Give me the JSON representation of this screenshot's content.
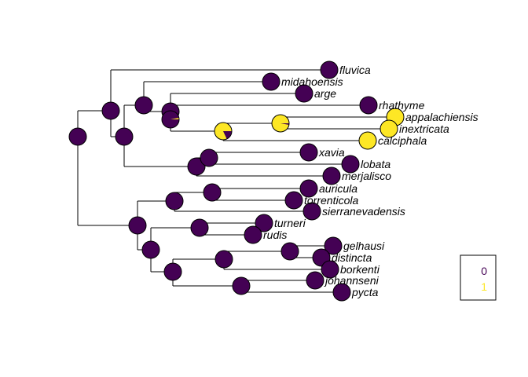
{
  "colors": {
    "state0": "#440154",
    "state1": "#FDE725",
    "edge": "#000000"
  },
  "legend": {
    "states": [
      {
        "label": "0",
        "color": "#440154"
      },
      {
        "label": "1",
        "color": "#FDE725"
      }
    ]
  },
  "tree": {
    "tips": [
      {
        "id": "fluvica",
        "label": "fluvica",
        "state1": 0
      },
      {
        "id": "midahoensis",
        "label": "midahoensis",
        "state1": 0
      },
      {
        "id": "arge",
        "label": "arge",
        "state1": 0
      },
      {
        "id": "rhathyme",
        "label": "rhathyme",
        "state1": 0
      },
      {
        "id": "appalachiensis",
        "label": "appalachiensis",
        "state1": 1
      },
      {
        "id": "inextricata",
        "label": "inextricata",
        "state1": 1
      },
      {
        "id": "calciphala",
        "label": "calciphala",
        "state1": 1
      },
      {
        "id": "xavia",
        "label": "xavia",
        "state1": 0
      },
      {
        "id": "lobata",
        "label": "lobata",
        "state1": 0
      },
      {
        "id": "merjalisco",
        "label": "merjalisco",
        "state1": 0
      },
      {
        "id": "auricula",
        "label": "auricula",
        "state1": 0
      },
      {
        "id": "torrenticola",
        "label": "torrenticola",
        "state1": 0
      },
      {
        "id": "sierranevadensis",
        "label": "sierranevadensis",
        "state1": 0
      },
      {
        "id": "turneri",
        "label": "turneri",
        "state1": 0
      },
      {
        "id": "rudis",
        "label": "rudis",
        "state1": 0
      },
      {
        "id": "gelhausi",
        "label": "gelhausi",
        "state1": 0
      },
      {
        "id": "distincta",
        "label": "distincta",
        "state1": 0
      },
      {
        "id": "borkenti",
        "label": "borkenti",
        "state1": 0
      },
      {
        "id": "johannseni",
        "label": "johannseni",
        "state1": 0
      },
      {
        "id": "pycta",
        "label": "pycta",
        "state1": 0
      }
    ],
    "nodes": [
      {
        "id": "root",
        "state1": 0,
        "children": [
          "clade_a",
          "clade_b"
        ]
      },
      {
        "id": "clade_a",
        "state1": 0,
        "children": [
          "fluvica",
          "clade_a1"
        ]
      },
      {
        "id": "clade_a1",
        "state1": 0,
        "children": [
          "clade_a2",
          "clade_a3"
        ]
      },
      {
        "id": "clade_a2",
        "state1": 0,
        "children": [
          "midahoensis",
          "clade_a4"
        ]
      },
      {
        "id": "clade_a4",
        "state1": 0,
        "children": [
          "arge",
          "clade_a5"
        ]
      },
      {
        "id": "clade_a5",
        "state1": 0.03,
        "children": [
          "rhathyme",
          "clade_a6"
        ]
      },
      {
        "id": "clade_a6",
        "state1": 0.82,
        "children": [
          "clade_a7",
          "calciphala"
        ]
      },
      {
        "id": "clade_a7",
        "state1": 0.97,
        "children": [
          "appalachiensis",
          "inextricata"
        ]
      },
      {
        "id": "clade_a3",
        "state1": 0,
        "children": [
          "clade_a8",
          "merjalisco"
        ]
      },
      {
        "id": "clade_a8",
        "state1": 0,
        "children": [
          "xavia",
          "lobata"
        ]
      },
      {
        "id": "clade_b",
        "state1": 0,
        "children": [
          "clade_b1",
          "clade_b2"
        ]
      },
      {
        "id": "clade_b1",
        "state1": 0,
        "children": [
          "clade_b3",
          "sierranevadensis"
        ]
      },
      {
        "id": "clade_b3",
        "state1": 0,
        "children": [
          "auricula",
          "torrenticola"
        ]
      },
      {
        "id": "clade_b2",
        "state1": 0,
        "children": [
          "clade_b4",
          "clade_b5"
        ]
      },
      {
        "id": "clade_b4",
        "state1": 0,
        "children": [
          "turneri",
          "rudis"
        ]
      },
      {
        "id": "clade_b5",
        "state1": 0,
        "children": [
          "clade_b6",
          "clade_b7"
        ]
      },
      {
        "id": "clade_b6",
        "state1": 0,
        "children": [
          "clade_b8",
          "borkenti"
        ]
      },
      {
        "id": "clade_b8",
        "state1": 0,
        "children": [
          "gelhausi",
          "distincta"
        ]
      },
      {
        "id": "clade_b7",
        "state1": 0,
        "children": [
          "johannseni",
          "pycta"
        ]
      }
    ]
  }
}
